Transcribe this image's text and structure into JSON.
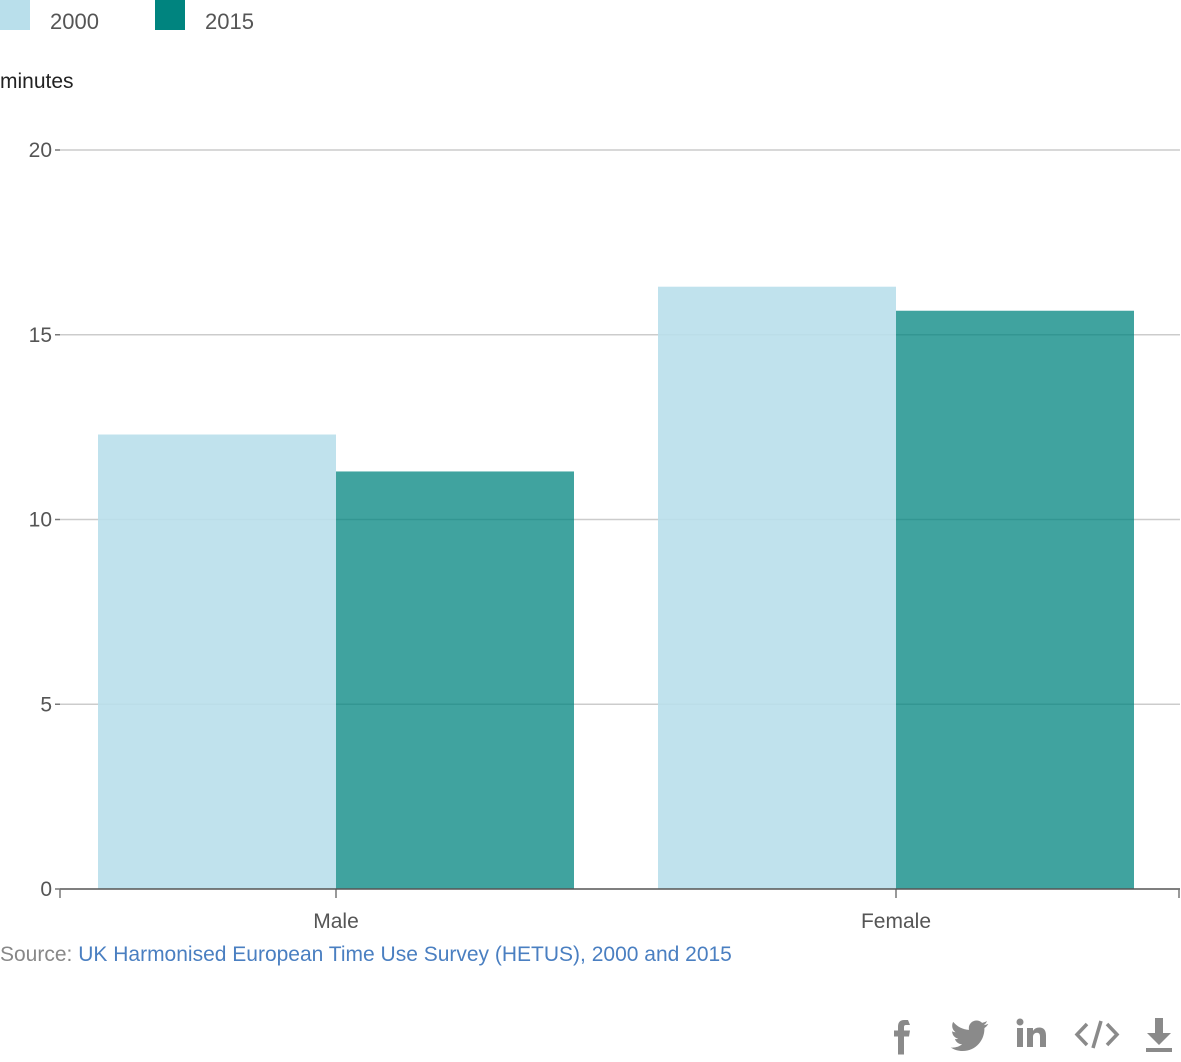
{
  "legend": {
    "items": [
      {
        "label": "2000",
        "color": "#b9dfeb"
      },
      {
        "label": "2015",
        "color": "#00847f"
      }
    ]
  },
  "unit_label": "minutes",
  "chart_data": {
    "type": "bar",
    "categories": [
      "Male",
      "Female"
    ],
    "series": [
      {
        "name": "2000",
        "values": [
          12.3,
          16.3
        ],
        "color": "#b9dfeb"
      },
      {
        "name": "2015",
        "values": [
          11.3,
          15.65
        ],
        "color": "#00847f"
      }
    ],
    "title": "",
    "xlabel": "",
    "ylabel": "minutes",
    "ylim": [
      0,
      20
    ],
    "yticks": [
      "0",
      "5",
      "10",
      "15",
      "20"
    ],
    "grid": true,
    "legend_position": "top-left"
  },
  "source": {
    "prefix": "Source: ",
    "link_text": "UK Harmonised European Time Use Survey (HETUS), 2000 and 2015"
  },
  "share": {
    "icons": [
      "facebook-icon",
      "twitter-icon",
      "linkedin-icon",
      "embed-icon",
      "download-icon"
    ]
  }
}
